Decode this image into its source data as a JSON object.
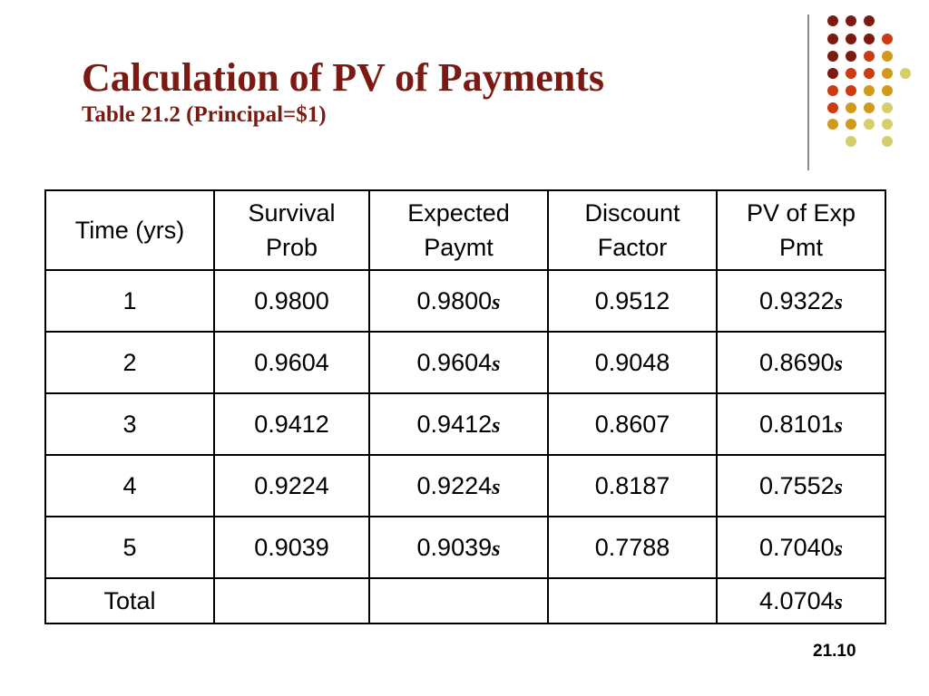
{
  "slide": {
    "title": "Calculation of PV of Payments",
    "subtitle": "Table 21.2 (Principal=$1)",
    "page_number": "21.10"
  },
  "decoration": {
    "dot_colors": {
      "dark_red": "#7b1a10",
      "red_orange": "#cc3a12",
      "gold": "#d19a1c",
      "olive": "#d3cf6c"
    }
  },
  "table": {
    "headers": [
      [
        "Time (yrs)"
      ],
      [
        "Survival",
        "Prob"
      ],
      [
        "Expected",
        "Paymt"
      ],
      [
        "Discount",
        "Factor"
      ],
      [
        "PV of Exp",
        "Pmt"
      ]
    ],
    "rows": [
      {
        "time": "1",
        "survival": "0.9800",
        "expected": "0.9800",
        "expected_unit": "s",
        "discount": "0.9512",
        "pv": "0.9322",
        "pv_unit": "s"
      },
      {
        "time": "2",
        "survival": "0.9604",
        "expected": "0.9604",
        "expected_unit": "s",
        "discount": "0.9048",
        "pv": "0.8690",
        "pv_unit": "s"
      },
      {
        "time": "3",
        "survival": "0.9412",
        "expected": "0.9412",
        "expected_unit": "s",
        "discount": "0.8607",
        "pv": "0.8101",
        "pv_unit": "s"
      },
      {
        "time": "4",
        "survival": "0.9224",
        "expected": "0.9224",
        "expected_unit": "s",
        "discount": "0.8187",
        "pv": "0.7552",
        "pv_unit": "s"
      },
      {
        "time": "5",
        "survival": "0.9039",
        "expected": "0.9039",
        "expected_unit": "s",
        "discount": "0.7788",
        "pv": "0.7040",
        "pv_unit": "s"
      }
    ],
    "total": {
      "label": "Total",
      "pv": "4.0704",
      "pv_unit": "s"
    }
  }
}
